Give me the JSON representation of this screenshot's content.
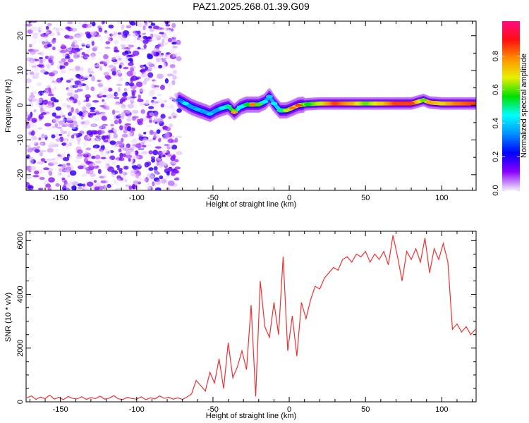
{
  "title": "PAZ1.2025.268.01.39.G09",
  "chart_data": [
    {
      "type": "heatmap",
      "title": "PAZ1.2025.268.01.39.G09",
      "xlabel": "Height of straight line (km)",
      "ylabel": "Frequency (Hz)",
      "xlim": [
        -172.5,
        122.5
      ],
      "ylim": [
        -24.5,
        24.2
      ],
      "xticks": [
        -150,
        -100,
        -50,
        0,
        50,
        100
      ],
      "yticks": [
        -20,
        -10,
        0,
        10,
        20
      ],
      "colorbar": {
        "label": "Normalized spectral amplitude",
        "range": [
          0,
          1
        ],
        "ticks": [
          0.0,
          0.2,
          0.4,
          0.6,
          0.8
        ],
        "colors": [
          "#f4ecff",
          "#8a00ff",
          "#0000ff",
          "#0090ff",
          "#00ffff",
          "#00e000",
          "#e8f000",
          "#ff9000",
          "#ff1010",
          "#ff0a80"
        ]
      },
      "noise_region_xlim": [
        -172.5,
        -72
      ],
      "ridge": [
        {
          "x": -72,
          "f": 1.5,
          "a": 0.3
        },
        {
          "x": -68,
          "f": 0.5,
          "a": 0.45
        },
        {
          "x": -64,
          "f": -0.5,
          "a": 0.35
        },
        {
          "x": -60,
          "f": -1.2,
          "a": 0.38
        },
        {
          "x": -56,
          "f": -1.8,
          "a": 0.35
        },
        {
          "x": -52,
          "f": -2.5,
          "a": 0.4
        },
        {
          "x": -48,
          "f": -1.5,
          "a": 0.35
        },
        {
          "x": -44,
          "f": -0.8,
          "a": 0.45
        },
        {
          "x": -40,
          "f": -0.3,
          "a": 0.5
        },
        {
          "x": -36,
          "f": -2.0,
          "a": 0.75
        },
        {
          "x": -32,
          "f": -0.5,
          "a": 0.45
        },
        {
          "x": -28,
          "f": 0.2,
          "a": 0.55
        },
        {
          "x": -24,
          "f": 0.2,
          "a": 0.8
        },
        {
          "x": -20,
          "f": 0.2,
          "a": 0.6
        },
        {
          "x": -16,
          "f": 1.0,
          "a": 0.45
        },
        {
          "x": -13,
          "f": 2.5,
          "a": 0.4
        },
        {
          "x": -10,
          "f": 0.5,
          "a": 0.45
        },
        {
          "x": -6,
          "f": -1.5,
          "a": 0.5
        },
        {
          "x": -2,
          "f": -1.5,
          "a": 0.65
        },
        {
          "x": 2,
          "f": -0.8,
          "a": 0.8
        },
        {
          "x": 6,
          "f": 0,
          "a": 0.85
        },
        {
          "x": 12,
          "f": 0.3,
          "a": 0.55
        },
        {
          "x": 20,
          "f": 0.5,
          "a": 0.65
        },
        {
          "x": 30,
          "f": 0.5,
          "a": 0.85
        },
        {
          "x": 40,
          "f": 0.5,
          "a": 0.75
        },
        {
          "x": 50,
          "f": 0.5,
          "a": 0.6
        },
        {
          "x": 60,
          "f": 0.5,
          "a": 0.7
        },
        {
          "x": 70,
          "f": 0.5,
          "a": 0.85
        },
        {
          "x": 80,
          "f": 0.5,
          "a": 0.85
        },
        {
          "x": 88,
          "f": 1.5,
          "a": 0.6
        },
        {
          "x": 92,
          "f": 0.8,
          "a": 0.75
        },
        {
          "x": 100,
          "f": 0.5,
          "a": 0.7
        },
        {
          "x": 110,
          "f": 0.5,
          "a": 0.8
        },
        {
          "x": 122,
          "f": 0.5,
          "a": 0.85
        }
      ]
    },
    {
      "type": "line",
      "xlabel": "Height of straight line (km)",
      "ylabel": "SNR (10 * v/v)",
      "xlim": [
        -172.5,
        122.5
      ],
      "ylim": [
        0,
        6350
      ],
      "xticks": [
        -150,
        -100,
        -50,
        0,
        50,
        100
      ],
      "yticks": [
        0,
        2000,
        4000,
        6000
      ],
      "color": "#f03030",
      "x_start": -172,
      "x_step": 3,
      "values": [
        150,
        220,
        90,
        180,
        120,
        250,
        100,
        170,
        80,
        200,
        130,
        110,
        190,
        90,
        160,
        120,
        210,
        100,
        140,
        230,
        110,
        90,
        170,
        120,
        100,
        190,
        80,
        150,
        110,
        220,
        130,
        170,
        100,
        150,
        90,
        180,
        300,
        800,
        600,
        400,
        1100,
        700,
        1600,
        500,
        2200,
        900,
        1300,
        1900,
        1200,
        3600,
        200,
        4500,
        2800,
        2400,
        3700,
        2500,
        5400,
        1900,
        3200,
        1700,
        3700,
        3100,
        3800,
        4300,
        4200,
        4600,
        4800,
        5000,
        4900,
        5300,
        5400,
        5200,
        5500,
        5400,
        5600,
        5200,
        5500,
        5300,
        5600,
        5100,
        6200,
        5400,
        4500,
        5600,
        5300,
        5700,
        5200,
        6100,
        4800,
        5700,
        5300,
        5900,
        5200,
        2700,
        2900,
        2600,
        2800,
        2500,
        2700
      ]
    }
  ]
}
